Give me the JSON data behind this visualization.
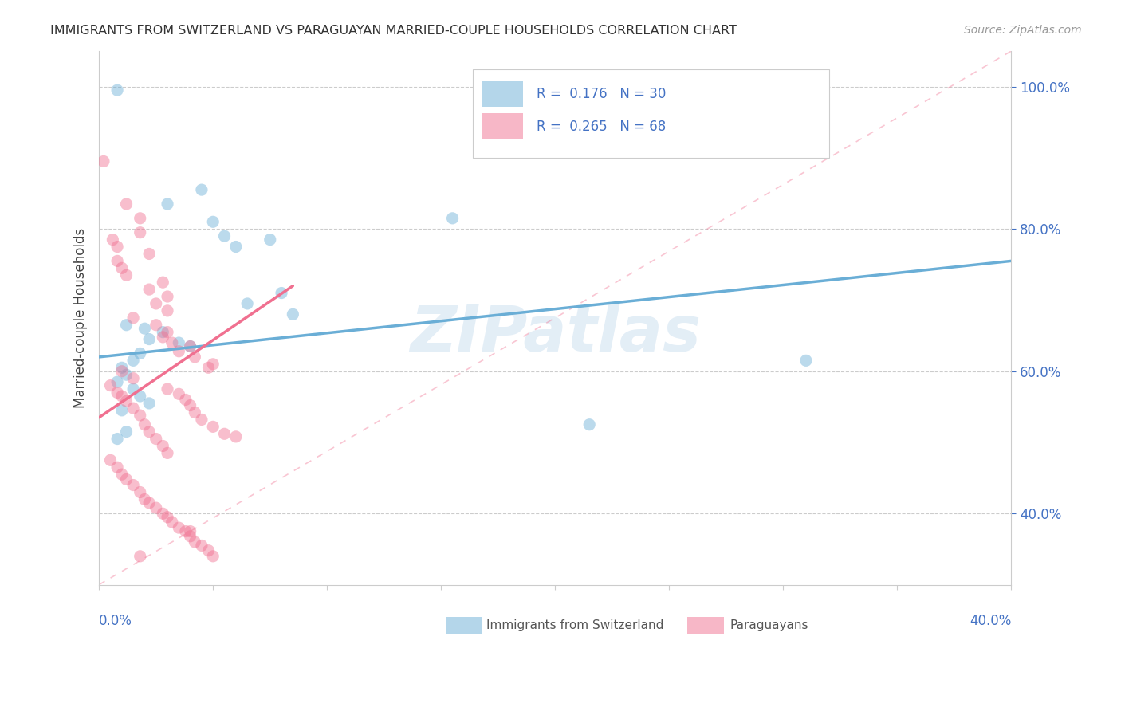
{
  "title": "IMMIGRANTS FROM SWITZERLAND VS PARAGUAYAN MARRIED-COUPLE HOUSEHOLDS CORRELATION CHART",
  "source": "Source: ZipAtlas.com",
  "ylabel": "Married-couple Households",
  "ytick_labels": [
    "40.0%",
    "60.0%",
    "80.0%",
    "100.0%"
  ],
  "ytick_values": [
    0.4,
    0.6,
    0.8,
    1.0
  ],
  "xlim": [
    0.0,
    0.4
  ],
  "ylim": [
    0.3,
    1.05
  ],
  "switzerland_color": "#6aaed6",
  "paraguayan_color": "#f07090",
  "watermark": "ZIPatlas",
  "axis_label_color": "#4472c4",
  "swiss_line": [
    0.0,
    0.62,
    0.4,
    0.755
  ],
  "para_line": [
    0.0,
    0.535,
    0.085,
    0.72
  ],
  "dashed_line": [
    0.0,
    0.3,
    0.4,
    1.05
  ],
  "swiss_scatter": [
    [
      0.008,
      0.995
    ],
    [
      0.045,
      0.855
    ],
    [
      0.03,
      0.835
    ],
    [
      0.05,
      0.81
    ],
    [
      0.055,
      0.79
    ],
    [
      0.075,
      0.785
    ],
    [
      0.06,
      0.775
    ],
    [
      0.08,
      0.71
    ],
    [
      0.065,
      0.695
    ],
    [
      0.085,
      0.68
    ],
    [
      0.012,
      0.665
    ],
    [
      0.02,
      0.66
    ],
    [
      0.028,
      0.655
    ],
    [
      0.022,
      0.645
    ],
    [
      0.035,
      0.64
    ],
    [
      0.04,
      0.635
    ],
    [
      0.018,
      0.625
    ],
    [
      0.015,
      0.615
    ],
    [
      0.01,
      0.605
    ],
    [
      0.012,
      0.595
    ],
    [
      0.008,
      0.585
    ],
    [
      0.015,
      0.575
    ],
    [
      0.018,
      0.565
    ],
    [
      0.022,
      0.555
    ],
    [
      0.01,
      0.545
    ],
    [
      0.012,
      0.515
    ],
    [
      0.008,
      0.505
    ],
    [
      0.155,
      0.815
    ],
    [
      0.215,
      0.525
    ],
    [
      0.31,
      0.615
    ]
  ],
  "para_scatter": [
    [
      0.002,
      0.895
    ],
    [
      0.012,
      0.835
    ],
    [
      0.018,
      0.815
    ],
    [
      0.018,
      0.795
    ],
    [
      0.006,
      0.785
    ],
    [
      0.008,
      0.775
    ],
    [
      0.022,
      0.765
    ],
    [
      0.008,
      0.755
    ],
    [
      0.01,
      0.745
    ],
    [
      0.012,
      0.735
    ],
    [
      0.028,
      0.725
    ],
    [
      0.022,
      0.715
    ],
    [
      0.03,
      0.705
    ],
    [
      0.025,
      0.695
    ],
    [
      0.03,
      0.685
    ],
    [
      0.015,
      0.675
    ],
    [
      0.025,
      0.665
    ],
    [
      0.03,
      0.655
    ],
    [
      0.028,
      0.648
    ],
    [
      0.032,
      0.64
    ],
    [
      0.04,
      0.635
    ],
    [
      0.035,
      0.628
    ],
    [
      0.042,
      0.62
    ],
    [
      0.05,
      0.61
    ],
    [
      0.048,
      0.605
    ],
    [
      0.01,
      0.6
    ],
    [
      0.015,
      0.59
    ],
    [
      0.005,
      0.58
    ],
    [
      0.008,
      0.57
    ],
    [
      0.01,
      0.565
    ],
    [
      0.012,
      0.558
    ],
    [
      0.015,
      0.548
    ],
    [
      0.018,
      0.538
    ],
    [
      0.02,
      0.525
    ],
    [
      0.022,
      0.515
    ],
    [
      0.025,
      0.505
    ],
    [
      0.028,
      0.495
    ],
    [
      0.03,
      0.485
    ],
    [
      0.005,
      0.475
    ],
    [
      0.008,
      0.465
    ],
    [
      0.01,
      0.455
    ],
    [
      0.012,
      0.448
    ],
    [
      0.015,
      0.44
    ],
    [
      0.018,
      0.43
    ],
    [
      0.02,
      0.42
    ],
    [
      0.022,
      0.415
    ],
    [
      0.025,
      0.408
    ],
    [
      0.028,
      0.4
    ],
    [
      0.03,
      0.395
    ],
    [
      0.032,
      0.388
    ],
    [
      0.035,
      0.38
    ],
    [
      0.038,
      0.375
    ],
    [
      0.04,
      0.368
    ],
    [
      0.042,
      0.36
    ],
    [
      0.045,
      0.355
    ],
    [
      0.048,
      0.348
    ],
    [
      0.05,
      0.34
    ],
    [
      0.03,
      0.575
    ],
    [
      0.035,
      0.568
    ],
    [
      0.038,
      0.56
    ],
    [
      0.04,
      0.552
    ],
    [
      0.042,
      0.542
    ],
    [
      0.045,
      0.532
    ],
    [
      0.05,
      0.522
    ],
    [
      0.055,
      0.512
    ],
    [
      0.06,
      0.508
    ],
    [
      0.04,
      0.375
    ],
    [
      0.018,
      0.34
    ]
  ]
}
